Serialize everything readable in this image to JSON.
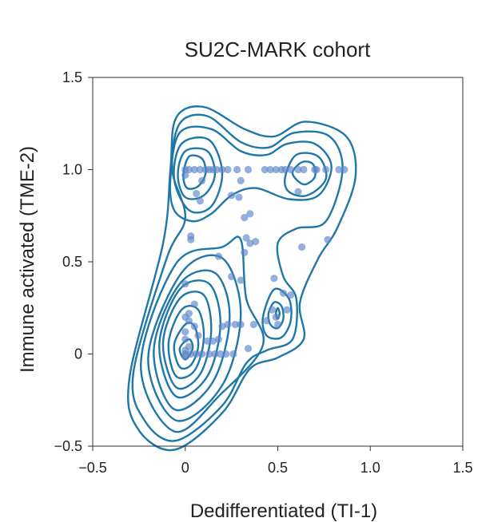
{
  "chart_data": {
    "type": "scatter",
    "title": "SU2C-MARK cohort",
    "xlabel": "Dedifferentiated (TI-1)",
    "ylabel": "Immune activated (TME-2)",
    "xlim": [
      -0.5,
      1.5
    ],
    "ylim": [
      -0.5,
      1.5
    ],
    "xticks": [
      -0.5,
      0,
      0.5,
      1.0,
      1.5
    ],
    "yticks": [
      -0.5,
      0,
      0.5,
      1.0,
      1.5
    ],
    "xtick_labels": [
      "−0.5",
      "0",
      "0.5",
      "1.0",
      "1.5"
    ],
    "ytick_labels": [
      "−0.5",
      "0",
      "0.5",
      "1.0",
      "1.5"
    ],
    "grid": false,
    "colors": {
      "points": "#5b86c6",
      "contours": "#1f77a8"
    },
    "overlay": "density-contours",
    "points": [
      {
        "x": 0,
        "y": 1.0
      },
      {
        "x": 0.02,
        "y": 1.0
      },
      {
        "x": 0.05,
        "y": 1.0
      },
      {
        "x": 0.08,
        "y": 1.0
      },
      {
        "x": 0.11,
        "y": 1.0
      },
      {
        "x": 0.13,
        "y": 1.0
      },
      {
        "x": 0.15,
        "y": 1.0
      },
      {
        "x": 0.17,
        "y": 1.0
      },
      {
        "x": 0.2,
        "y": 1.0
      },
      {
        "x": 0.23,
        "y": 1.0
      },
      {
        "x": 0.28,
        "y": 1.0
      },
      {
        "x": 0.34,
        "y": 1.0
      },
      {
        "x": 0.43,
        "y": 1.0
      },
      {
        "x": 0.46,
        "y": 1.0
      },
      {
        "x": 0.49,
        "y": 1.0
      },
      {
        "x": 0.52,
        "y": 1.0
      },
      {
        "x": 0.54,
        "y": 1.0
      },
      {
        "x": 0.57,
        "y": 1.0
      },
      {
        "x": 0.61,
        "y": 1.0
      },
      {
        "x": 0.64,
        "y": 1.0
      },
      {
        "x": 0.7,
        "y": 1.0
      },
      {
        "x": 0.71,
        "y": 1.0
      },
      {
        "x": 0.76,
        "y": 1.0
      },
      {
        "x": 0.83,
        "y": 1.0
      },
      {
        "x": 0.86,
        "y": 1.0
      },
      {
        "x": 0,
        "y": 0.97
      },
      {
        "x": 0.09,
        "y": 0.94
      },
      {
        "x": 0.3,
        "y": 0.94
      },
      {
        "x": 0.61,
        "y": 0.88
      },
      {
        "x": 0.06,
        "y": 0.87
      },
      {
        "x": 0.25,
        "y": 0.86
      },
      {
        "x": 0.08,
        "y": 0.83
      },
      {
        "x": 0.29,
        "y": 0.85
      },
      {
        "x": 0.35,
        "y": 0.76
      },
      {
        "x": 0.32,
        "y": 0.74
      },
      {
        "x": 0.03,
        "y": 0.64
      },
      {
        "x": 0.03,
        "y": 0.62
      },
      {
        "x": 0.33,
        "y": 0.63
      },
      {
        "x": 0.35,
        "y": 0.6
      },
      {
        "x": 0.77,
        "y": 0.62
      },
      {
        "x": 0.38,
        "y": 0.61
      },
      {
        "x": 0.63,
        "y": 0.58
      },
      {
        "x": 0.18,
        "y": 0.53
      },
      {
        "x": 0.32,
        "y": 0.55
      },
      {
        "x": 0.48,
        "y": 0.41
      },
      {
        "x": 0.25,
        "y": 0.42
      },
      {
        "x": 0.3,
        "y": 0.4
      },
      {
        "x": 0.0,
        "y": 0.38
      },
      {
        "x": 0.53,
        "y": 0.33
      },
      {
        "x": 0.57,
        "y": 0.32
      },
      {
        "x": 0.47,
        "y": 0.24
      },
      {
        "x": 0.49,
        "y": 0.2
      },
      {
        "x": 0.55,
        "y": 0.24
      },
      {
        "x": 0.44,
        "y": 0.18
      },
      {
        "x": 0.5,
        "y": 0.16
      },
      {
        "x": 0.05,
        "y": 0.27
      },
      {
        "x": 0.02,
        "y": 0.22
      },
      {
        "x": 0.0,
        "y": 0.2
      },
      {
        "x": 0.02,
        "y": 0.18
      },
      {
        "x": 0.05,
        "y": 0.15
      },
      {
        "x": 0.07,
        "y": 0.1
      },
      {
        "x": 0.12,
        "y": 0.07
      },
      {
        "x": 0.15,
        "y": 0.07
      },
      {
        "x": 0.18,
        "y": 0.08
      },
      {
        "x": 0.2,
        "y": 0.15
      },
      {
        "x": 0.23,
        "y": 0.16
      },
      {
        "x": 0.27,
        "y": 0.16
      },
      {
        "x": 0.3,
        "y": 0.16
      },
      {
        "x": 0.37,
        "y": 0.16
      },
      {
        "x": 0.0,
        "y": 0.12
      },
      {
        "x": 0.0,
        "y": 0.08
      },
      {
        "x": 0.02,
        "y": 0.04
      },
      {
        "x": 0.0,
        "y": 0.02
      },
      {
        "x": 0.0,
        "y": 0.0
      },
      {
        "x": 0.03,
        "y": 0.0
      },
      {
        "x": 0.06,
        "y": 0.0
      },
      {
        "x": 0.09,
        "y": 0.0
      },
      {
        "x": 0.13,
        "y": 0.0
      },
      {
        "x": 0.16,
        "y": 0.0
      },
      {
        "x": 0.19,
        "y": 0.0
      },
      {
        "x": 0.22,
        "y": 0.0
      },
      {
        "x": 0.26,
        "y": 0.0
      },
      {
        "x": 0.34,
        "y": 0.03
      },
      {
        "x": 0.0,
        "y": -0.01
      }
    ],
    "contours": [
      [
        [
          -0.03,
          0.03
        ],
        [
          0.02,
          0.08
        ],
        [
          0.04,
          0.03
        ],
        [
          0.0,
          -0.03
        ],
        [
          -0.03,
          0.03
        ]
      ],
      [
        [
          -0.06,
          0.05
        ],
        [
          0.0,
          0.16
        ],
        [
          0.05,
          0.15
        ],
        [
          0.07,
          0.04
        ],
        [
          0.03,
          -0.06
        ],
        [
          -0.03,
          -0.07
        ],
        [
          -0.06,
          0.05
        ]
      ],
      [
        [
          -0.09,
          0.06
        ],
        [
          -0.02,
          0.24
        ],
        [
          0.07,
          0.24
        ],
        [
          0.1,
          0.08
        ],
        [
          0.05,
          -0.09
        ],
        [
          -0.05,
          -0.12
        ],
        [
          -0.09,
          0.06
        ]
      ],
      [
        [
          -0.12,
          0.06
        ],
        [
          -0.03,
          0.3
        ],
        [
          0.1,
          0.32
        ],
        [
          0.14,
          0.12
        ],
        [
          0.08,
          -0.11
        ],
        [
          -0.05,
          -0.18
        ],
        [
          -0.12,
          0.06
        ]
      ],
      [
        [
          -0.14,
          0.05
        ],
        [
          -0.03,
          0.35
        ],
        [
          0.13,
          0.38
        ],
        [
          0.19,
          0.16
        ],
        [
          0.12,
          -0.12
        ],
        [
          -0.05,
          -0.23
        ],
        [
          -0.14,
          0.05
        ]
      ],
      [
        [
          -0.17,
          0.02
        ],
        [
          -0.03,
          0.38
        ],
        [
          0.16,
          0.44
        ],
        [
          0.24,
          0.2
        ],
        [
          0.15,
          -0.15
        ],
        [
          -0.06,
          -0.3
        ],
        [
          -0.17,
          0.02
        ]
      ],
      [
        [
          -0.2,
          -0.02
        ],
        [
          -0.02,
          0.44
        ],
        [
          0.2,
          0.52
        ],
        [
          0.3,
          0.22
        ],
        [
          0.2,
          -0.17
        ],
        [
          -0.05,
          -0.36
        ],
        [
          -0.2,
          -0.02
        ]
      ],
      [
        [
          -0.24,
          -0.06
        ],
        [
          -0.05,
          0.49
        ],
        [
          0.2,
          0.58
        ],
        [
          0.3,
          0.62
        ],
        [
          0.33,
          0.3
        ],
        [
          0.42,
          0.05
        ],
        [
          0.19,
          -0.22
        ],
        [
          -0.06,
          -0.42
        ],
        [
          -0.24,
          -0.06
        ]
      ],
      [
        [
          -0.01,
          0.97
        ],
        [
          0.02,
          1.07
        ],
        [
          0.09,
          1.06
        ],
        [
          0.11,
          0.98
        ],
        [
          0.07,
          0.91
        ],
        [
          0.01,
          0.9
        ],
        [
          -0.01,
          0.97
        ]
      ],
      [
        [
          -0.04,
          0.97
        ],
        [
          0.0,
          1.1
        ],
        [
          0.12,
          1.1
        ],
        [
          0.16,
          0.97
        ],
        [
          0.1,
          0.86
        ],
        [
          0.0,
          0.85
        ],
        [
          -0.04,
          0.97
        ]
      ],
      [
        [
          -0.06,
          0.95
        ],
        [
          -0.02,
          1.14
        ],
        [
          0.13,
          1.16
        ],
        [
          0.2,
          0.98
        ],
        [
          0.14,
          0.8
        ],
        [
          0.02,
          0.78
        ],
        [
          -0.06,
          0.95
        ]
      ],
      [
        [
          0.58,
          0.98
        ],
        [
          0.63,
          1.04
        ],
        [
          0.69,
          1.03
        ],
        [
          0.7,
          0.96
        ],
        [
          0.64,
          0.92
        ],
        [
          0.58,
          0.98
        ]
      ],
      [
        [
          0.54,
          0.96
        ],
        [
          0.6,
          1.08
        ],
        [
          0.72,
          1.07
        ],
        [
          0.76,
          0.95
        ],
        [
          0.66,
          0.86
        ],
        [
          0.56,
          0.88
        ],
        [
          0.54,
          0.96
        ]
      ],
      [
        [
          0.49,
          0.22
        ],
        [
          0.5,
          0.25
        ],
        [
          0.51,
          0.22
        ],
        [
          0.5,
          0.19
        ],
        [
          0.49,
          0.22
        ]
      ],
      [
        [
          0.45,
          0.22
        ],
        [
          0.48,
          0.28
        ],
        [
          0.52,
          0.26
        ],
        [
          0.53,
          0.19
        ],
        [
          0.5,
          0.14
        ],
        [
          0.46,
          0.16
        ],
        [
          0.45,
          0.22
        ]
      ],
      [
        [
          0.42,
          0.2
        ],
        [
          0.48,
          0.35
        ],
        [
          0.56,
          0.3
        ],
        [
          0.57,
          0.18
        ],
        [
          0.52,
          0.09
        ],
        [
          0.44,
          0.1
        ],
        [
          0.42,
          0.2
        ]
      ],
      [
        [
          -0.08,
          0.95
        ],
        [
          -0.03,
          1.2
        ],
        [
          0.14,
          1.22
        ],
        [
          0.3,
          1.1
        ],
        [
          0.44,
          1.08
        ],
        [
          0.55,
          1.14
        ],
        [
          0.7,
          1.14
        ],
        [
          0.79,
          1.02
        ],
        [
          0.72,
          0.86
        ],
        [
          0.56,
          0.84
        ],
        [
          0.38,
          0.9
        ],
        [
          0.25,
          0.86
        ],
        [
          0.14,
          0.76
        ],
        [
          0.04,
          0.72
        ],
        [
          -0.06,
          0.78
        ],
        [
          -0.08,
          0.95
        ]
      ],
      [
        [
          -0.28,
          -0.1
        ],
        [
          -0.1,
          0.52
        ],
        [
          0.0,
          0.74
        ],
        [
          -0.07,
          1.0
        ],
        [
          -0.03,
          1.25
        ],
        [
          0.12,
          1.29
        ],
        [
          0.3,
          1.15
        ],
        [
          0.45,
          1.12
        ],
        [
          0.59,
          1.2
        ],
        [
          0.78,
          1.18
        ],
        [
          0.85,
          1.0
        ],
        [
          0.76,
          0.72
        ],
        [
          0.6,
          0.68
        ],
        [
          0.5,
          0.6
        ],
        [
          0.53,
          0.42
        ],
        [
          0.6,
          0.3
        ],
        [
          0.58,
          0.08
        ],
        [
          0.44,
          0.02
        ],
        [
          0.33,
          -0.05
        ],
        [
          0.2,
          -0.28
        ],
        [
          -0.05,
          -0.47
        ],
        [
          -0.22,
          -0.36
        ],
        [
          -0.28,
          -0.1
        ]
      ],
      [
        [
          -0.3,
          -0.12
        ],
        [
          -0.12,
          0.6
        ],
        [
          -0.08,
          1.0
        ],
        [
          -0.05,
          1.28
        ],
        [
          0.1,
          1.34
        ],
        [
          0.32,
          1.22
        ],
        [
          0.48,
          1.18
        ],
        [
          0.65,
          1.26
        ],
        [
          0.87,
          1.18
        ],
        [
          0.92,
          0.96
        ],
        [
          0.82,
          0.68
        ],
        [
          0.72,
          0.52
        ],
        [
          0.62,
          0.28
        ],
        [
          0.64,
          0.08
        ],
        [
          0.5,
          -0.02
        ],
        [
          0.35,
          -0.08
        ],
        [
          0.2,
          -0.32
        ],
        [
          -0.06,
          -0.52
        ],
        [
          -0.26,
          -0.4
        ],
        [
          -0.3,
          -0.12
        ]
      ]
    ]
  }
}
